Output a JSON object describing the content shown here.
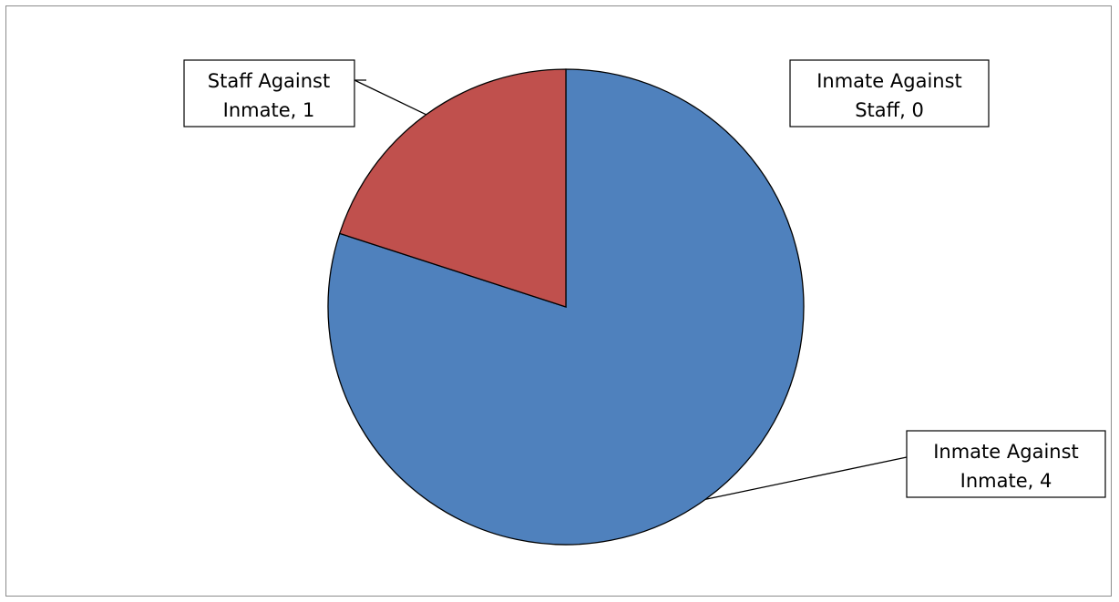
{
  "chart_data": {
    "type": "pie",
    "start_angle": "12 o'clock",
    "direction": "clockwise",
    "slices": [
      {
        "category": "Inmate Against Inmate",
        "value": 4,
        "color": "#4F81BD",
        "label_lines": [
          "Inmate Against",
          "Inmate, 4"
        ]
      },
      {
        "category": "Staff Against Inmate",
        "value": 1,
        "color": "#C0504D",
        "label_lines": [
          "Staff Against",
          "Inmate, 1"
        ]
      },
      {
        "category": "Inmate Against Staff",
        "value": 0,
        "color": "#9BBB59",
        "label_lines": [
          "Inmate Against",
          "Staff, 0"
        ]
      }
    ],
    "legend": "none",
    "data_labels": "category name, value"
  }
}
